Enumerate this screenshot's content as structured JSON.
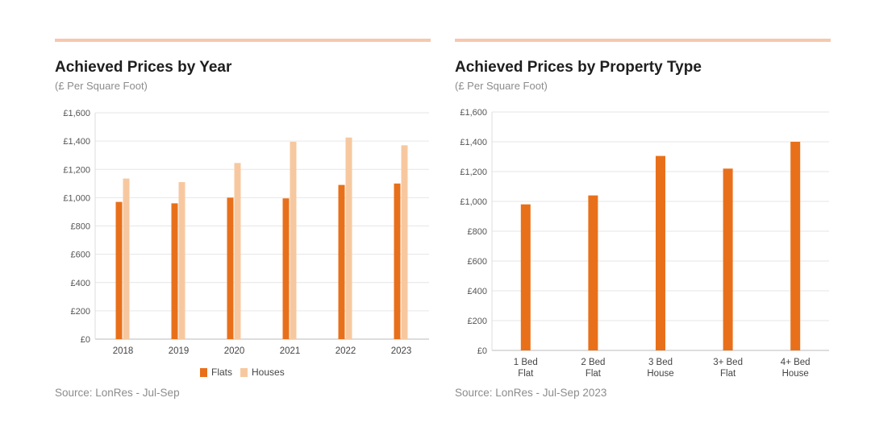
{
  "chart_data": [
    {
      "type": "bar",
      "title": "Achieved Prices by Year",
      "subtitle": "(£ Per Square Foot)",
      "source": "Source: LonRes - Jul-Sep",
      "categories": [
        "2018",
        "2019",
        "2020",
        "2021",
        "2022",
        "2023"
      ],
      "series": [
        {
          "name": "Flats",
          "values": [
            970,
            960,
            1000,
            995,
            1090,
            1100
          ],
          "color": "#e8701a"
        },
        {
          "name": "Houses",
          "values": [
            1135,
            1110,
            1245,
            1395,
            1425,
            1370
          ],
          "color": "#f7c89f"
        }
      ],
      "ylim": [
        0,
        1600
      ],
      "yticks": [
        0,
        200,
        400,
        600,
        800,
        1000,
        1200,
        1400,
        1600
      ],
      "ytick_labels": [
        "£0",
        "£200",
        "£400",
        "£600",
        "£800",
        "£1,000",
        "£1,200",
        "£1,400",
        "£1,600"
      ],
      "grid": true,
      "legend": "bottom"
    },
    {
      "type": "bar",
      "title": "Achieved Prices by Property Type",
      "subtitle": "(£ Per Square Foot)",
      "source": "Source: LonRes - Jul-Sep 2023",
      "categories": [
        [
          "1 Bed",
          "Flat"
        ],
        [
          "2 Bed",
          "Flat"
        ],
        [
          "3 Bed",
          "House"
        ],
        [
          "3+ Bed",
          "Flat"
        ],
        [
          "4+ Bed",
          "House"
        ]
      ],
      "series": [
        {
          "values": [
            980,
            1040,
            1305,
            1220,
            1400
          ],
          "color": "#e8701a"
        }
      ],
      "ylim": [
        0,
        1600
      ],
      "yticks": [
        0,
        200,
        400,
        600,
        800,
        1000,
        1200,
        1400,
        1600
      ],
      "ytick_labels": [
        "£0",
        "£200",
        "£400",
        "£600",
        "£800",
        "£1,000",
        "£1,200",
        "£1,400",
        "£1,600"
      ],
      "grid": true
    }
  ],
  "colors": {
    "accent": "#e8701a",
    "light": "#f7c89f",
    "rule": "#f6c8ad",
    "grid": "#e6e6e6"
  }
}
